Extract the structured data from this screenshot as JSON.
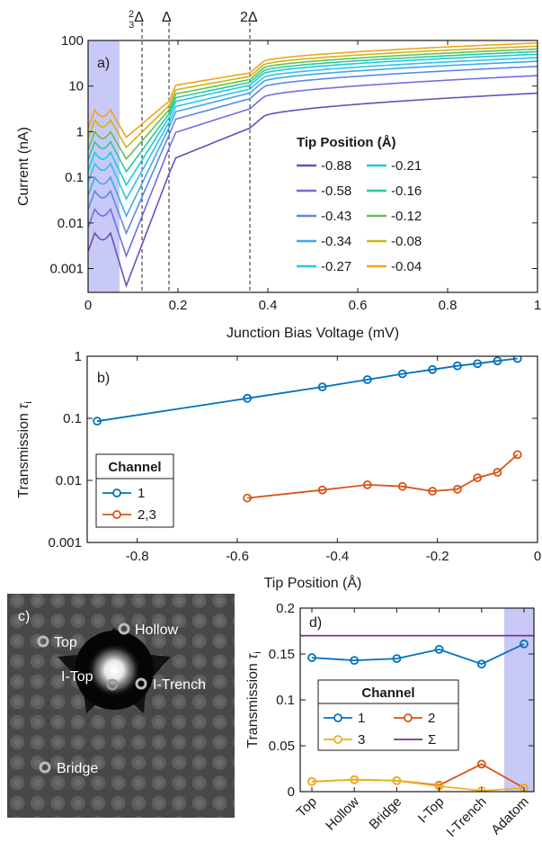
{
  "colors": {
    "shade": "#c9c9f7",
    "c1": "#0072BD",
    "c2": "#D95319",
    "c3": "#EDB120",
    "csum": "#7E2F8E"
  },
  "chart_data": [
    {
      "id": "a",
      "panel_label": "a)",
      "type": "line",
      "xlabel": "Junction Bias Voltage (mV)",
      "ylabel": "Current (nA)",
      "xlim": [
        0,
        1
      ],
      "ylim": [
        0.0003,
        100
      ],
      "yscale": "log",
      "xticks": [
        "0",
        "0.2",
        "0.4",
        "0.6",
        "0.8",
        "1"
      ],
      "yticks": [
        "100",
        "10",
        "1",
        "0.1",
        "0.01",
        "0.001"
      ],
      "top_labels": [
        "2/3 Δ",
        "Δ",
        "2Δ"
      ],
      "gap_lines_mV": [
        0.12,
        0.18,
        0.36
      ],
      "shaded_x": [
        0,
        0.07
      ],
      "legend_title": "Tip Position (Å)",
      "series": [
        {
          "name": "-0.88",
          "color": "#6a4fb8",
          "v0": 0.006,
          "v1": 7
        },
        {
          "name": "-0.58",
          "color": "#6f6ee0",
          "v0": 0.02,
          "v1": 17
        },
        {
          "name": "-0.43",
          "color": "#5a89e6",
          "v0": 0.05,
          "v1": 27
        },
        {
          "name": "-0.34",
          "color": "#3ba9e8",
          "v0": 0.1,
          "v1": 35
        },
        {
          "name": "-0.27",
          "color": "#2ec3ea",
          "v0": 0.2,
          "v1": 42
        },
        {
          "name": "-0.21",
          "color": "#18cdd8",
          "v0": 0.35,
          "v1": 50
        },
        {
          "name": "-0.16",
          "color": "#2fc79a",
          "v0": 0.6,
          "v1": 57
        },
        {
          "name": "-0.12",
          "color": "#63c150",
          "v0": 1.0,
          "v1": 65
        },
        {
          "name": "-0.08",
          "color": "#c8b619",
          "v0": 1.8,
          "v1": 75
        },
        {
          "name": "-0.04",
          "color": "#f2a419",
          "v0": 3.0,
          "v1": 88
        }
      ]
    },
    {
      "id": "b",
      "panel_label": "b)",
      "type": "line",
      "xlabel": "Tip Position (Å)",
      "ylabel": "Transmission τi",
      "xlim": [
        -0.9,
        0
      ],
      "ylim": [
        0.001,
        1
      ],
      "yscale": "log",
      "xticks": [
        "-0.8",
        "-0.6",
        "-0.4",
        "-0.2",
        "0"
      ],
      "yticks": [
        "1",
        "0.1",
        "0.01",
        "0.001"
      ],
      "legend_title": "Channel",
      "series": [
        {
          "name": "1",
          "x": [
            -0.88,
            -0.58,
            -0.43,
            -0.34,
            -0.27,
            -0.21,
            -0.16,
            -0.12,
            -0.08,
            -0.04
          ],
          "values": [
            0.09,
            0.21,
            0.32,
            0.42,
            0.52,
            0.61,
            0.7,
            0.76,
            0.84,
            0.92
          ]
        },
        {
          "name": "2,3",
          "x": [
            -0.58,
            -0.43,
            -0.34,
            -0.27,
            -0.21,
            -0.16,
            -0.12,
            -0.08,
            -0.04
          ],
          "values": [
            0.0052,
            0.007,
            0.0085,
            0.008,
            0.0067,
            0.0072,
            0.011,
            0.0135,
            0.026
          ]
        }
      ]
    },
    {
      "id": "d",
      "panel_label": "d)",
      "type": "line",
      "xlabel": "",
      "ylabel": "Transmission τi",
      "categories": [
        "Top",
        "Hollow",
        "Bridge",
        "I-Top",
        "I-Trench",
        "Adatom"
      ],
      "ylim": [
        0,
        0.2
      ],
      "yticks": [
        "0",
        "0.05",
        "0.1",
        "0.15",
        "0.2"
      ],
      "legend_title": "Channel",
      "series": [
        {
          "name": "1",
          "values": [
            0.146,
            0.143,
            0.145,
            0.155,
            0.139,
            0.161
          ]
        },
        {
          "name": "2",
          "values": [
            0.011,
            0.013,
            0.012,
            0.007,
            0.03,
            0.004
          ]
        },
        {
          "name": "3",
          "values": [
            0.011,
            0.013,
            0.012,
            0.006,
            0.001,
            0.004
          ]
        },
        {
          "name": "Σ",
          "values": [
            0.17,
            0.17,
            0.17,
            0.17,
            0.17,
            0.17
          ]
        }
      ]
    }
  ],
  "image_c": {
    "panel_label": "c)",
    "sites": [
      "Top",
      "Hollow",
      "I-Top",
      "I-Trench",
      "Bridge"
    ]
  }
}
